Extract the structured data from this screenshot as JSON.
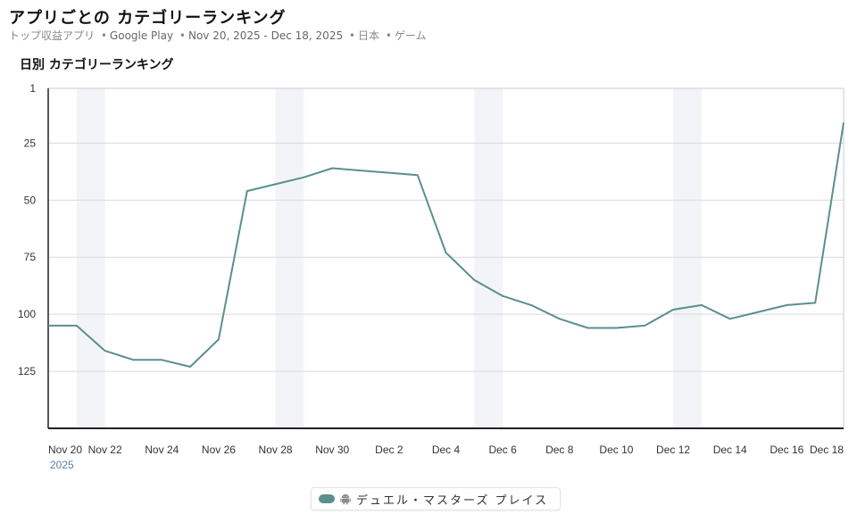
{
  "header": {
    "title": "アプリごとの カテゴリーランキング",
    "subtitle_parts": {
      "list": "トップ収益アプリ",
      "store": "Google Play",
      "date_range": "Nov 20, 2025 - Dec 18, 2025",
      "country": "日本",
      "category": "ゲーム"
    }
  },
  "section": {
    "title": "日別 カテゴリーランキング"
  },
  "colors": {
    "series": "#5a8f8f",
    "weekend_band": "#f2f4f7",
    "grid": "#d9d9d9",
    "axis": "#222222"
  },
  "legend": {
    "icon": "android-icon",
    "label": "デュエル・マスターズ プレイス"
  },
  "chart_data": {
    "type": "line",
    "title": "日別 カテゴリーランキング",
    "xlabel": "",
    "ylabel": "",
    "y_inverted": true,
    "ylim": [
      1,
      150
    ],
    "y_ticks": [
      1,
      25,
      50,
      75,
      100,
      125
    ],
    "x_tick_labels": [
      "Nov 20",
      "Nov 22",
      "Nov 24",
      "Nov 26",
      "Nov 28",
      "Nov 30",
      "Dec 2",
      "Dec 4",
      "Dec 6",
      "Dec 8",
      "Dec 10",
      "Dec 12",
      "Dec 14",
      "Dec 16",
      "Dec 18"
    ],
    "x_year_label": "2025",
    "weekend_bands": [
      [
        "Nov 21",
        "Nov 22"
      ],
      [
        "Nov 28",
        "Nov 29"
      ],
      [
        "Dec 5",
        "Dec 6"
      ],
      [
        "Dec 12",
        "Dec 13"
      ]
    ],
    "grid": true,
    "legend_position": "bottom-center",
    "x": [
      "Nov 20",
      "Nov 21",
      "Nov 22",
      "Nov 23",
      "Nov 24",
      "Nov 25",
      "Nov 26",
      "Nov 27",
      "Nov 28",
      "Nov 29",
      "Nov 30",
      "Dec 1",
      "Dec 2",
      "Dec 3",
      "Dec 4",
      "Dec 5",
      "Dec 6",
      "Dec 7",
      "Dec 8",
      "Dec 9",
      "Dec 10",
      "Dec 11",
      "Dec 12",
      "Dec 13",
      "Dec 14",
      "Dec 15",
      "Dec 16",
      "Dec 17",
      "Dec 18"
    ],
    "series": [
      {
        "name": "デュエル・マスターズ プレイス",
        "values": [
          105,
          105,
          116,
          120,
          120,
          123,
          111,
          46,
          43,
          40,
          36,
          37,
          38,
          39,
          73,
          85,
          92,
          96,
          102,
          106,
          106,
          105,
          98,
          96,
          102,
          99,
          96,
          95,
          16
        ]
      }
    ]
  }
}
